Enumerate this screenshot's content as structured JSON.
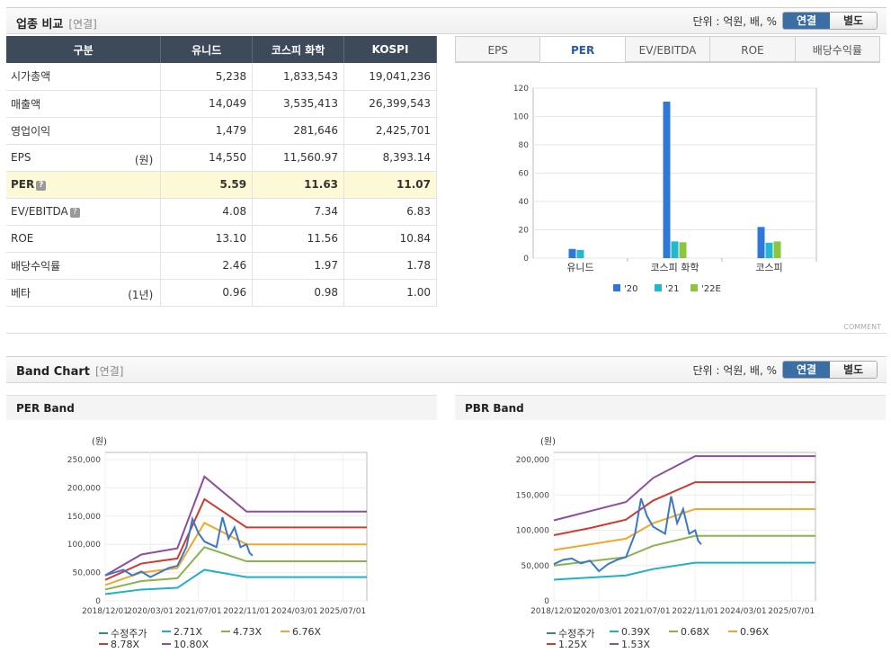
{
  "section1": {
    "title": "업종 비교",
    "sub": "[연결]"
  },
  "unit_label": "단위 : 억원, 배, %",
  "toggle": {
    "on": "연결",
    "off": "별도"
  },
  "table": {
    "headers": [
      "구분",
      "유니드",
      "코스피 화학",
      "KOSPI"
    ],
    "rows": [
      {
        "label": "시가총액",
        "note": "",
        "values": [
          "5,238",
          "1,833,543",
          "19,041,236"
        ]
      },
      {
        "label": "매출액",
        "note": "",
        "values": [
          "14,049",
          "3,535,413",
          "26,399,543"
        ]
      },
      {
        "label": "영업이익",
        "note": "",
        "values": [
          "1,479",
          "281,646",
          "2,425,701"
        ]
      },
      {
        "label": "EPS",
        "note": "(원)",
        "values": [
          "14,550",
          "11,560.97",
          "8,393.14"
        ]
      },
      {
        "label": "PER",
        "note": "",
        "values": [
          "5.59",
          "11.63",
          "11.07"
        ]
      },
      {
        "label": "EV/EBITDA",
        "note": "",
        "values": [
          "4.08",
          "7.34",
          "6.83"
        ]
      },
      {
        "label": "ROE",
        "note": "",
        "values": [
          "13.10",
          "11.56",
          "10.84"
        ]
      },
      {
        "label": "배당수익률",
        "note": "",
        "values": [
          "2.46",
          "1.97",
          "1.78"
        ]
      },
      {
        "label": "베타",
        "note": "(1년)",
        "values": [
          "0.96",
          "0.98",
          "1.00"
        ]
      }
    ]
  },
  "tabs": [
    "EPS",
    "PER",
    "EV/EBITDA",
    "ROE",
    "배당수익률"
  ],
  "comment": "COMMENT",
  "section2": {
    "title": "Band Chart",
    "sub": "[연결]"
  },
  "per_band_title": "PER Band",
  "pbr_band_title": "PBR Band",
  "colors": {
    "y20": "#2f78d8",
    "y21": "#22b8d0",
    "y22": "#8cc63f",
    "price": "#3a78c8",
    "b1": "#1fb0c8",
    "b2": "#8ab34a",
    "b3": "#f2a72a",
    "b4": "#d03a30",
    "b5": "#8e4ea0"
  },
  "chart_data": [
    {
      "type": "bar",
      "categories": [
        "유니드",
        "코스피 화학",
        "코스피"
      ],
      "series": [
        {
          "name": "'20",
          "values": [
            6.5,
            110.5,
            22.0
          ]
        },
        {
          "name": "'21",
          "values": [
            5.8,
            11.8,
            10.9
          ]
        },
        {
          "name": "'22E",
          "values": [
            null,
            11.2,
            11.8
          ]
        }
      ],
      "ylim": [
        0,
        120
      ],
      "yticks": [
        0,
        20,
        40,
        60,
        80,
        100,
        120
      ],
      "legend": "bottom"
    },
    {
      "type": "line",
      "title": "PER Band",
      "ylabel": "(원)",
      "ylim": [
        0,
        250000
      ],
      "yticks": [
        "0",
        "50,000",
        "100,000",
        "150,000",
        "200,000",
        "250,000"
      ],
      "xticks": [
        "2018/12/01",
        "2020/03/01",
        "2021/07/01",
        "2022/11/01",
        "2024/03/01",
        "2025/07/01"
      ],
      "series": [
        {
          "name": "수정주가",
          "x": [
            "2018/12",
            "2019/03",
            "2019/06",
            "2019/09",
            "2019/12",
            "2020/03",
            "2020/06",
            "2020/09",
            "2020/12",
            "2021/03",
            "2021/05",
            "2021/07",
            "2021/09",
            "2021/11",
            "2022/01",
            "2022/03",
            "2022/05",
            "2022/07",
            "2022/09",
            "2022/11",
            "2022/12",
            "2023/01"
          ],
          "values": [
            45000,
            50000,
            55000,
            45000,
            52000,
            42000,
            50000,
            58000,
            62000,
            95000,
            145000,
            120000,
            105000,
            100000,
            95000,
            148000,
            110000,
            130000,
            95000,
            100000,
            85000,
            80000
          ]
        },
        {
          "name": "2.71X",
          "x": [
            "2018/12",
            "2019/12",
            "2020/12",
            "2021/09",
            "2022/11",
            "2026/03"
          ],
          "values": [
            12000,
            20000,
            23000,
            55000,
            42000,
            42000
          ]
        },
        {
          "name": "4.73X",
          "x": [
            "2018/12",
            "2019/12",
            "2020/12",
            "2021/09",
            "2022/11",
            "2026/03"
          ],
          "values": [
            20000,
            35000,
            40000,
            95000,
            70000,
            70000
          ]
        },
        {
          "name": "6.76X",
          "x": [
            "2018/12",
            "2019/12",
            "2020/12",
            "2021/09",
            "2022/11",
            "2026/03"
          ],
          "values": [
            28000,
            50000,
            58000,
            138000,
            100000,
            100000
          ]
        },
        {
          "name": "8.78X",
          "x": [
            "2018/12",
            "2019/12",
            "2020/12",
            "2021/09",
            "2022/11",
            "2026/03"
          ],
          "values": [
            37000,
            66000,
            75000,
            180000,
            130000,
            130000
          ]
        },
        {
          "name": "10.80X",
          "x": [
            "2018/12",
            "2019/12",
            "2020/12",
            "2021/09",
            "2022/11",
            "2026/03"
          ],
          "values": [
            45000,
            82000,
            93000,
            220000,
            158000,
            158000
          ]
        }
      ],
      "legend": "bottom"
    },
    {
      "type": "line",
      "title": "PBR Band",
      "ylabel": "(원)",
      "ylim": [
        0,
        200000
      ],
      "yticks": [
        "0",
        "50,000",
        "100,000",
        "150,000",
        "200,000"
      ],
      "xticks": [
        "2018/12/01",
        "2020/03/01",
        "2021/07/01",
        "2022/11/01",
        "2024/03/01",
        "2025/07/01"
      ],
      "series": [
        {
          "name": "수정주가",
          "x": [
            "2018/12",
            "2019/03",
            "2019/06",
            "2019/09",
            "2019/12",
            "2020/03",
            "2020/06",
            "2020/09",
            "2020/12",
            "2021/03",
            "2021/05",
            "2021/07",
            "2021/09",
            "2021/11",
            "2022/01",
            "2022/03",
            "2022/05",
            "2022/07",
            "2022/09",
            "2022/11",
            "2022/12",
            "2023/01"
          ],
          "values": [
            52000,
            58000,
            60000,
            53000,
            57000,
            42000,
            52000,
            58000,
            62000,
            95000,
            145000,
            120000,
            105000,
            100000,
            95000,
            148000,
            110000,
            130000,
            95000,
            100000,
            85000,
            80000
          ]
        },
        {
          "name": "0.39X",
          "x": [
            "2018/12",
            "2019/12",
            "2020/12",
            "2021/09",
            "2022/11",
            "2026/03"
          ],
          "values": [
            30000,
            33000,
            36000,
            45000,
            54000,
            54000
          ]
        },
        {
          "name": "0.68X",
          "x": [
            "2018/12",
            "2019/12",
            "2020/12",
            "2021/09",
            "2022/11",
            "2026/03"
          ],
          "values": [
            50000,
            56000,
            62000,
            78000,
            92000,
            92000
          ]
        },
        {
          "name": "0.96X",
          "x": [
            "2018/12",
            "2019/12",
            "2020/12",
            "2021/09",
            "2022/11",
            "2026/03"
          ],
          "values": [
            72000,
            80000,
            88000,
            110000,
            130000,
            130000
          ]
        },
        {
          "name": "1.25X",
          "x": [
            "2018/12",
            "2019/12",
            "2020/12",
            "2021/09",
            "2022/11",
            "2026/03"
          ],
          "values": [
            93000,
            103000,
            115000,
            142000,
            168000,
            168000
          ]
        },
        {
          "name": "1.53X",
          "x": [
            "2018/12",
            "2019/12",
            "2020/12",
            "2021/09",
            "2022/11",
            "2026/03"
          ],
          "values": [
            114000,
            127000,
            140000,
            174000,
            205000,
            205000
          ]
        }
      ],
      "legend": "bottom"
    }
  ]
}
